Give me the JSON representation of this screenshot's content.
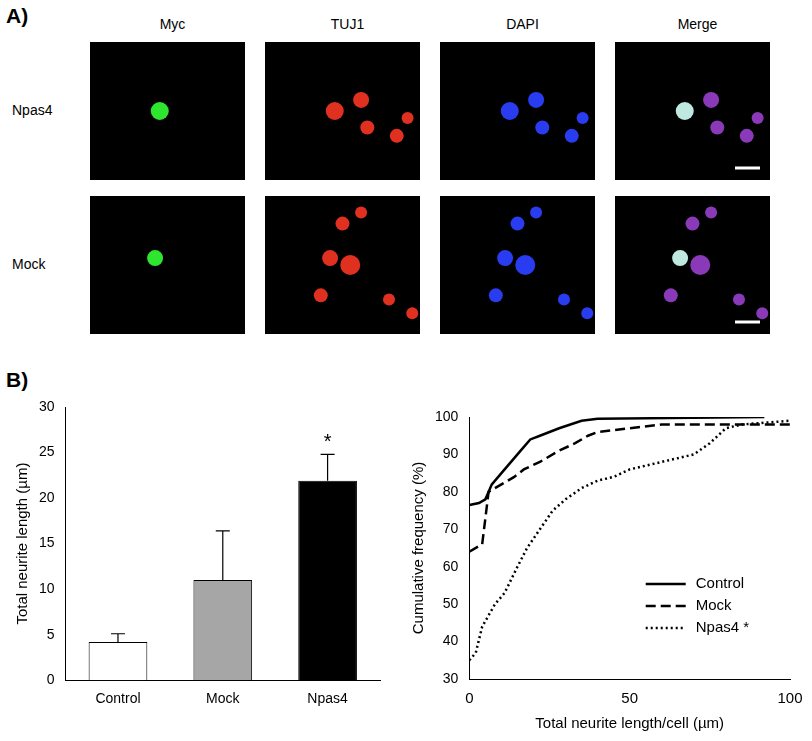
{
  "panel_labels": [
    "A)",
    "B)"
  ],
  "panel_a": {
    "columns": [
      "Myc",
      "TUJ1",
      "DAPI",
      "Merge"
    ],
    "rows": [
      "Npas4",
      "Mock"
    ]
  },
  "chart_data": [
    {
      "type": "bar",
      "categories": [
        "Control",
        "Mock",
        "Npas4"
      ],
      "values": [
        4.2,
        11,
        21.9
      ],
      "errors": [
        0.9,
        5.4,
        2.9
      ],
      "colors": [
        "#ffffff",
        "#a6a6a6",
        "#000000"
      ],
      "y_label": "Total neurite length (µm)",
      "ylim": [
        0,
        30
      ],
      "yticks": [
        0,
        5,
        10,
        15,
        20,
        25,
        30
      ],
      "grid": false,
      "annotations": [
        {
          "text": "*",
          "category": "Npas4"
        }
      ]
    },
    {
      "type": "line",
      "x_label": "Total neurite length/cell (µm)",
      "y_label": "Cumulative frequency (%)",
      "xlim": [
        0,
        100
      ],
      "xticks": [
        0,
        50,
        100
      ],
      "ylim": [
        30,
        100
      ],
      "yticks": [
        30,
        40,
        50,
        60,
        70,
        80,
        90,
        100
      ],
      "grid": false,
      "legend": "lower right",
      "series": [
        {
          "name": "Control",
          "color": "#000000",
          "line_style": "solid",
          "x": [
            0,
            3,
            5,
            7,
            10,
            13,
            16,
            19,
            22,
            28,
            35,
            40,
            92
          ],
          "values": [
            76.5,
            77,
            78,
            82,
            85,
            88,
            91,
            94,
            95,
            97,
            99,
            99.5,
            100
          ]
        },
        {
          "name": "Mock",
          "color": "#000000",
          "line_style": "dashed",
          "x": [
            0,
            4,
            6,
            10,
            14,
            17,
            22,
            28,
            33,
            37,
            40,
            50,
            60,
            80,
            100
          ],
          "values": [
            64,
            66,
            80,
            82,
            84,
            86,
            88,
            91,
            93,
            95,
            96,
            97,
            98,
            98,
            98
          ]
        },
        {
          "name": "Npas4 *",
          "color": "#000000",
          "line_style": "dotted",
          "x": [
            0,
            2,
            4,
            6,
            8,
            11,
            15,
            18,
            22,
            26,
            30,
            35,
            40,
            45,
            50,
            55,
            60,
            70,
            75,
            80,
            85,
            100
          ],
          "values": [
            35,
            37,
            44,
            47,
            50,
            53,
            60,
            65,
            70,
            75,
            78,
            81,
            83,
            84,
            86,
            87,
            88,
            90,
            93,
            97,
            98,
            99
          ]
        }
      ]
    }
  ]
}
